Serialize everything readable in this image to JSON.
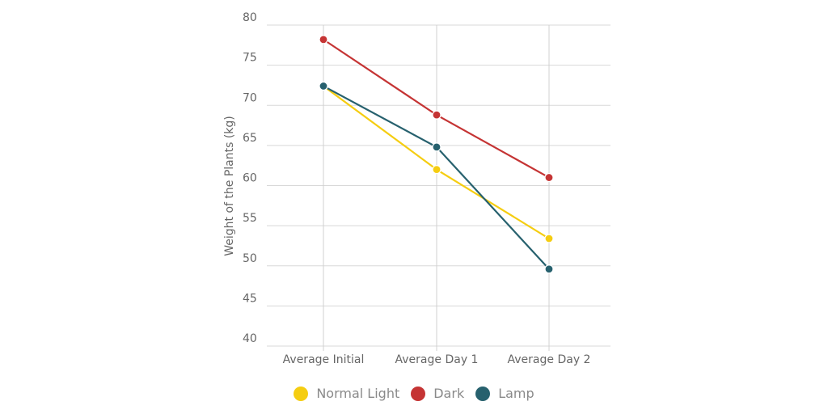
{
  "chart_data": {
    "type": "line",
    "title": "",
    "xlabel": "",
    "ylabel": "Weight of the Plants (kg)",
    "categories": [
      "Average Initial",
      "Average Day 1",
      "Average Day 2"
    ],
    "ylim": [
      40,
      80
    ],
    "yticks": [
      40,
      45,
      50,
      55,
      60,
      65,
      70,
      75,
      80
    ],
    "grid": true,
    "legend_position": "bottom",
    "series": [
      {
        "name": "Normal Light",
        "color": "#f5cd11",
        "values": [
          72.4,
          62.0,
          53.4
        ]
      },
      {
        "name": "Dark",
        "color": "#c53434",
        "values": [
          78.2,
          68.8,
          61.0
        ]
      },
      {
        "name": "Lamp",
        "color": "#27616e",
        "values": [
          72.4,
          64.8,
          49.6
        ]
      }
    ]
  }
}
